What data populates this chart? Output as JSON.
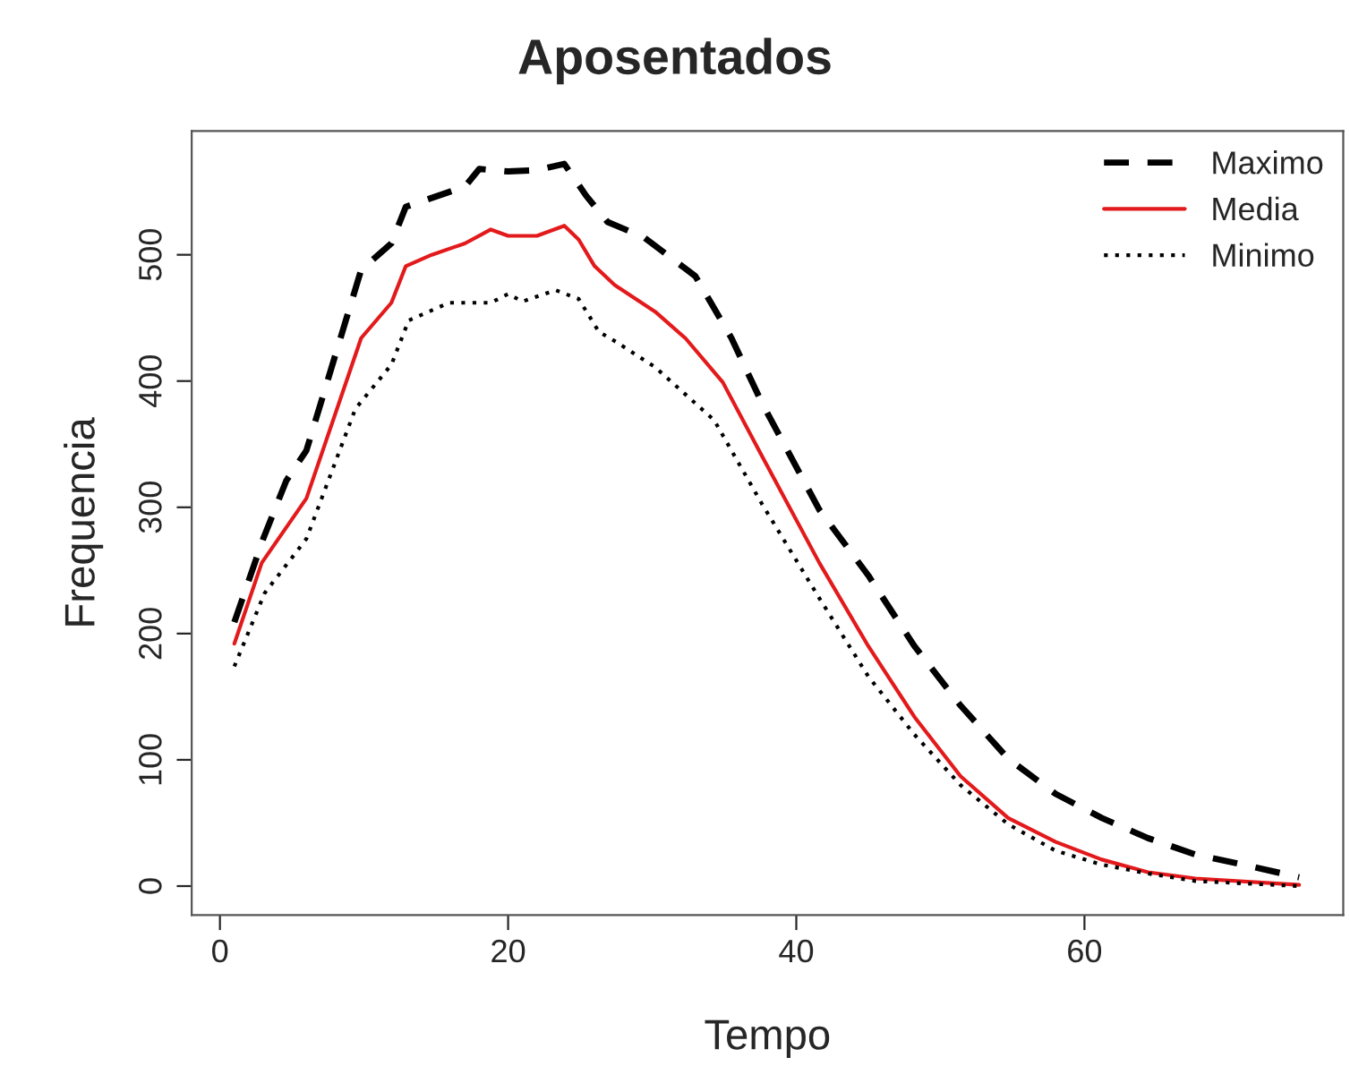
{
  "chart_data": {
    "type": "line",
    "title": "Aposentados",
    "xlabel": "Tempo",
    "ylabel": "Frequencia",
    "xlim": [
      -1.96,
      77.96
    ],
    "ylim": [
      -23,
      598
    ],
    "xticks": [
      0,
      20,
      40,
      60
    ],
    "yticks": [
      0,
      100,
      200,
      300,
      400,
      500
    ],
    "grid": false,
    "legend": "top right",
    "series": [
      {
        "name": "Maximo",
        "color": "#000000",
        "line_style": "dashed",
        "x": [
          1,
          3,
          4.6,
          6,
          9.8,
          11.9,
          12.9,
          17,
          18,
          20,
          22,
          23.9,
          25.4,
          26.9,
          29.4,
          33,
          35.5,
          37.6,
          41.6,
          45,
          48.2,
          51.4,
          54.7,
          58,
          61.2,
          64.4,
          67.7,
          71,
          74.9
        ],
        "values": [
          209,
          275,
          321,
          345,
          488,
          509,
          538,
          554,
          568,
          566,
          567,
          572,
          547,
          526,
          514,
          483,
          434,
          383,
          298,
          246,
          190,
          143,
          101,
          73,
          54,
          38,
          25,
          17,
          7
        ]
      },
      {
        "name": "Media",
        "color": "#e31a1c",
        "line_style": "solid",
        "x": [
          1,
          2.9,
          6,
          9.8,
          11.9,
          12.9,
          14.7,
          17,
          18.8,
          20,
          22,
          23.9,
          24.9,
          26,
          27.4,
          30.2,
          32.3,
          34.9,
          37.6,
          41.6,
          45,
          48.2,
          51.4,
          54.7,
          58,
          61.2,
          64.4,
          67.7,
          74.9
        ],
        "values": [
          192,
          256,
          307,
          434,
          462,
          491,
          500,
          509,
          520,
          515,
          515,
          523,
          512,
          491,
          476,
          455,
          434,
          399,
          341,
          256,
          190,
          134,
          87,
          54,
          35,
          21,
          11,
          6,
          1
        ]
      },
      {
        "name": "Minimo",
        "color": "#000000",
        "line_style": "dotted",
        "x": [
          1,
          3.1,
          6,
          9.4,
          11.9,
          13.1,
          15.9,
          18.8,
          20,
          21,
          23.3,
          24.9,
          26.3,
          27.5,
          30.2,
          34.3,
          36,
          37.6,
          41.6,
          45,
          48.2,
          51.4,
          54.7,
          58,
          61.2,
          64.4,
          67.7,
          74.9
        ],
        "values": [
          174,
          232,
          275,
          378,
          413,
          448,
          462,
          462,
          469,
          463,
          472,
          465,
          439,
          431,
          411,
          369,
          335,
          303,
          228,
          166,
          120,
          80,
          49,
          28,
          17,
          10,
          4,
          0
        ]
      }
    ]
  }
}
